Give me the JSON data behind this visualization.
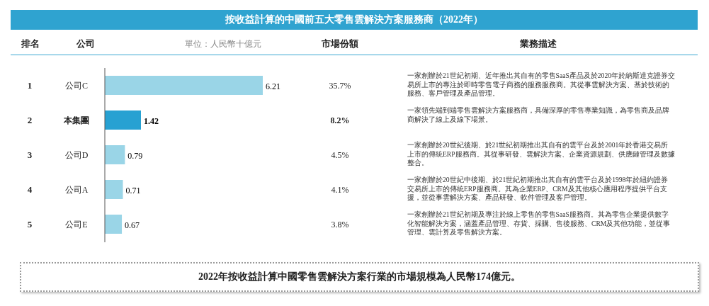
{
  "chart_data": {
    "type": "bar",
    "orientation": "horizontal",
    "title": "按收益計算的中國前五大零售雲解決方案服務商（2022年）",
    "xlabel": "單位：人民幣十億元",
    "categories": [
      "公司C",
      "本集團",
      "公司D",
      "公司A",
      "公司E"
    ],
    "values": [
      6.21,
      1.42,
      0.79,
      0.71,
      0.67
    ],
    "colors": [
      "#9ad5e7",
      "#27a1d2",
      "#9ad5e7",
      "#9ad5e7",
      "#9ad5e7"
    ],
    "data_labels": true,
    "annotations": [
      "排名",
      "公司",
      "市場份額",
      "業務描述",
      "1",
      "2",
      "3",
      "4",
      "5",
      "35.7%",
      "8.2%",
      "4.5%",
      "4.1%",
      "3.8%",
      "一家創辦於21世紀初期、近年推出其自有的零售SaaS產品及於2020年於納斯達克證券交易所上市的專注於即時零售電子商務的服務服務商。其從事雲解決方案、基於技術的服務、客戶管理及產品管理。",
      "一家領先端到端零售雲解決方案服務商，具備深厚的零售專業知識，為零售商及品牌商解決了線上及線下場景。",
      "一家創辦於20世紀後期、於21世紀初期推出其自有的雲平台及於2001年於香港交易所上市的傳統ERP服務商。其從事研發、雲解決方案、企業資源規劃、供應鏈管理及數據整合。",
      "一家創辦於20世紀中後期、於21世紀初期推出其自有的雲平台及於1998年於紐約證券交易所上市的傳統ERP服務商。其為企業ERP、CRM及其他核心應用程序提供平台支援，並從事雲解決方案、產品研發、軟件管理及客戶管理。",
      "一家創辦於21世紀初期及專注於線上零售的零售SaaS服務商。其為零售企業提供數字化智能解決方案，涵蓋產品管理、存貨、採購、售後服務、CRM及其他功能，並從事管理、雲計算及零售解決方案。",
      "2022年按收益計算中國零售雲解決方案行業的市場規模為人民幣174億元。"
    ]
  }
}
